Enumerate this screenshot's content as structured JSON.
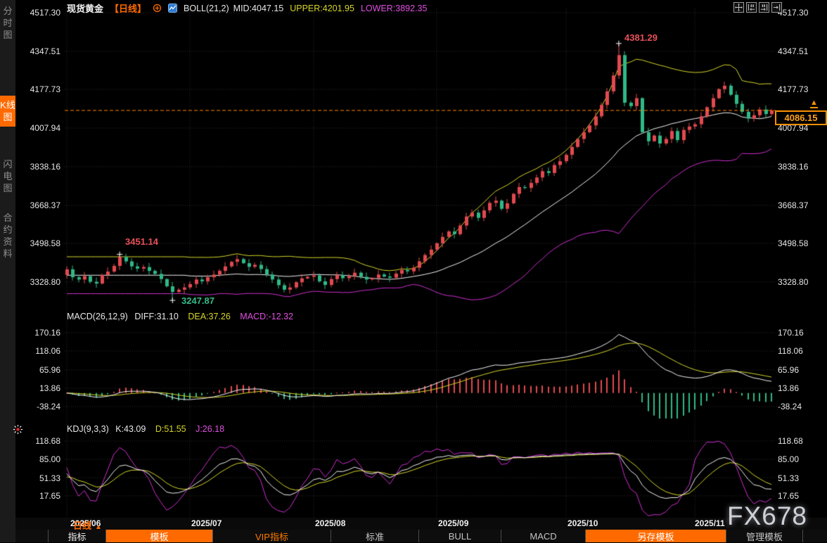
{
  "header": {
    "symbol": "现货黄金",
    "period_tag": "【日线】",
    "boll_label": "BOLL(21,2)",
    "mid_label": "MID:4047.15",
    "upper_label": "UPPER:4201.95",
    "lower_label": "LOWER:3892.35"
  },
  "toolbar": {
    "icons": [
      "pan-crosshair-icon",
      "compress-bars-icon",
      "expand-bars-icon",
      "goto-latest-icon"
    ]
  },
  "sidebar": {
    "items": [
      {
        "label": "分时图",
        "active": false
      },
      {
        "label": "K线图",
        "active": true
      },
      {
        "label": "闪电图",
        "active": false
      },
      {
        "label": "合约资料",
        "active": false
      }
    ]
  },
  "main_axis": {
    "labels": [
      "4517.30",
      "4347.51",
      "4177.73",
      "4007.94",
      "3838.16",
      "3668.37",
      "3498.58",
      "3328.80"
    ]
  },
  "annotations": {
    "swing_high_1": "3451.14",
    "swing_low_1": "3247.87",
    "swing_high_2": "4381.29"
  },
  "price_tag": {
    "value": "4086.15",
    "arrow": "▲"
  },
  "macd": {
    "title": "MACD(26,12,9)",
    "diff_label": "DIFF:31.10",
    "dea_label": "DEA:37.26",
    "macd_label": "MACD:-12.32",
    "axis": [
      "170.16",
      "118.06",
      "65.96",
      "13.86",
      "-38.24"
    ]
  },
  "kdj": {
    "title": "KDJ(9,3,3)",
    "k_label": "K:43.09",
    "d_label": "D:51.55",
    "j_label": "J:26.18",
    "axis": [
      "118.68",
      "85.00",
      "51.33",
      "17.65"
    ]
  },
  "xaxis": {
    "period": "日线",
    "arrow": "▲",
    "months": [
      "2025/06",
      "2025/07",
      "2025/08",
      "2025/09",
      "2025/10",
      "2025/11"
    ]
  },
  "tabs": {
    "items": [
      {
        "label": "指标"
      },
      {
        "label": "模板"
      },
      {
        "label": "VIP指标"
      },
      {
        "label": "标准"
      },
      {
        "label": "BULL"
      },
      {
        "label": "MACD"
      },
      {
        "label": "另存模板"
      },
      {
        "label": "管理模板"
      }
    ]
  },
  "watermark": {
    "text": "FX678"
  },
  "colors": {
    "up": "#e2494f",
    "down": "#2fb987",
    "boll_upper": "#d6d62a",
    "boll_mid": "#f2f2f2",
    "boll_lower": "#cf2fcf",
    "diff": "#f2f2f2",
    "dea": "#d6d62a",
    "k": "#f2f2f2",
    "d": "#d6d62a",
    "j": "#cf2fcf",
    "grid": "#2e2e2e",
    "price_line": "#ff8400",
    "accent": "#ff6a00"
  },
  "chart_data": {
    "type": "candlestick",
    "title": "现货黄金 日线",
    "price_axis": [
      4517.3,
      4347.51,
      4177.73,
      4007.94,
      3838.16,
      3668.37,
      3498.58,
      3328.8
    ],
    "macd_axis": [
      170.16,
      118.06,
      65.96,
      13.86,
      -38.24
    ],
    "kdj_axis": [
      118.68,
      85.0,
      51.33,
      17.65
    ],
    "x_months": [
      "2025/06",
      "2025/07",
      "2025/08",
      "2025/09",
      "2025/10",
      "2025/11"
    ],
    "month_start_idx": [
      0,
      21,
      42,
      63,
      85,
      107
    ],
    "boll": {
      "period": 21,
      "mult": 2
    },
    "macd_params": {
      "slow": 26,
      "fast": 12,
      "signal": 9
    },
    "kdj_params": [
      9,
      3,
      3
    ],
    "last_price": 4086.15,
    "markers": [
      {
        "idx": 9,
        "type": "high",
        "value": 3451.14
      },
      {
        "idx": 18,
        "type": "low",
        "value": 3247.87
      },
      {
        "idx": 94,
        "type": "high",
        "value": 4381.29
      }
    ],
    "candles": {
      "closes": [
        3385,
        3350,
        3340,
        3355,
        3330,
        3322,
        3360,
        3375,
        3400,
        3440,
        3420,
        3398,
        3388,
        3395,
        3378,
        3365,
        3342,
        3310,
        3285,
        3295,
        3305,
        3320,
        3340,
        3332,
        3350,
        3362,
        3378,
        3398,
        3418,
        3430,
        3412,
        3396,
        3405,
        3386,
        3362,
        3340,
        3315,
        3295,
        3305,
        3328,
        3345,
        3352,
        3358,
        3332,
        3316,
        3342,
        3360,
        3346,
        3355,
        3370,
        3352,
        3340,
        3346,
        3362,
        3353,
        3348,
        3366,
        3382,
        3376,
        3392,
        3420,
        3448,
        3472,
        3500,
        3528,
        3552,
        3540,
        3578,
        3618,
        3635,
        3612,
        3645,
        3678,
        3688,
        3652,
        3676,
        3718,
        3748,
        3744,
        3766,
        3790,
        3818,
        3810,
        3845,
        3862,
        3890,
        3925,
        3960,
        3990,
        4020,
        4060,
        4110,
        4170,
        4240,
        4330,
        4120,
        4105,
        4140,
        3990,
        3950,
        3975,
        3940,
        3960,
        3995,
        3955,
        4000,
        4015,
        4025,
        4060,
        4100,
        4140,
        4180,
        4195,
        4155,
        4115,
        4080,
        4050,
        4065,
        4090,
        4070,
        4086.15
      ]
    }
  }
}
